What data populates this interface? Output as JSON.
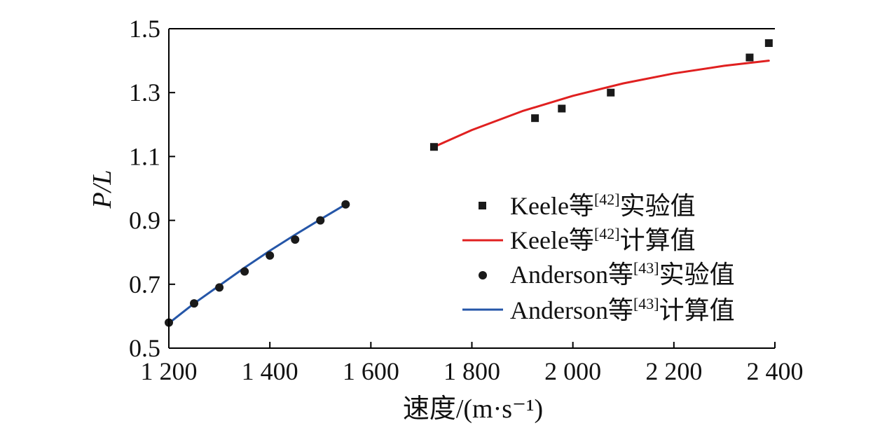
{
  "chart_data": {
    "type": "scatter",
    "xlabel": "速度/(m·s⁻¹)",
    "ylabel": "P/L",
    "xlim": [
      1200,
      2400
    ],
    "ylim": [
      0.5,
      1.5
    ],
    "x_ticks": [
      1200,
      1400,
      1600,
      1800,
      2000,
      2200,
      2400
    ],
    "x_tick_labels": [
      "1 200",
      "1 400",
      "1 600",
      "1 800",
      "2 000",
      "2 200",
      "2 400"
    ],
    "y_ticks": [
      0.5,
      0.7,
      0.9,
      1.1,
      1.3,
      1.5
    ],
    "y_tick_labels": [
      "0.5",
      "0.7",
      "0.9",
      "1.1",
      "1.3",
      "1.5"
    ],
    "grid": false,
    "legend_position": "right",
    "series": [
      {
        "name": "Keele等[42]实验值",
        "kind": "points",
        "marker": "square",
        "color": "#1a1a1a",
        "x": [
          1725,
          1925,
          1978,
          2075,
          2350,
          2388
        ],
        "y": [
          1.13,
          1.22,
          1.25,
          1.3,
          1.41,
          1.455
        ]
      },
      {
        "name": "Keele等[42]计算值",
        "kind": "line",
        "color": "#e02020",
        "x": [
          1725,
          1800,
          1900,
          2000,
          2100,
          2200,
          2300,
          2388
        ],
        "y": [
          1.13,
          1.183,
          1.242,
          1.29,
          1.329,
          1.36,
          1.384,
          1.4
        ]
      },
      {
        "name": "Anderson等[43]实验值",
        "kind": "points",
        "marker": "circle",
        "color": "#1a1a1a",
        "x": [
          1200,
          1250,
          1300,
          1350,
          1400,
          1450,
          1500,
          1550
        ],
        "y": [
          0.58,
          0.64,
          0.69,
          0.74,
          0.79,
          0.84,
          0.9,
          0.95
        ]
      },
      {
        "name": "Anderson等[43]计算值",
        "kind": "line",
        "color": "#2556a8",
        "x": [
          1200,
          1250,
          1300,
          1350,
          1400,
          1450,
          1500,
          1550
        ],
        "y": [
          0.578,
          0.64,
          0.696,
          0.752,
          0.805,
          0.855,
          0.903,
          0.95
        ]
      }
    ]
  },
  "legend": {
    "entries": [
      {
        "prefix": "Keele等",
        "sup": "[42]",
        "suffix": "实验值"
      },
      {
        "prefix": "Keele等",
        "sup": "[42]",
        "suffix": "计算值"
      },
      {
        "prefix": "Anderson等",
        "sup": "[43]",
        "suffix": "实验值"
      },
      {
        "prefix": "Anderson等",
        "sup": "[43]",
        "suffix": "计算值"
      }
    ]
  }
}
